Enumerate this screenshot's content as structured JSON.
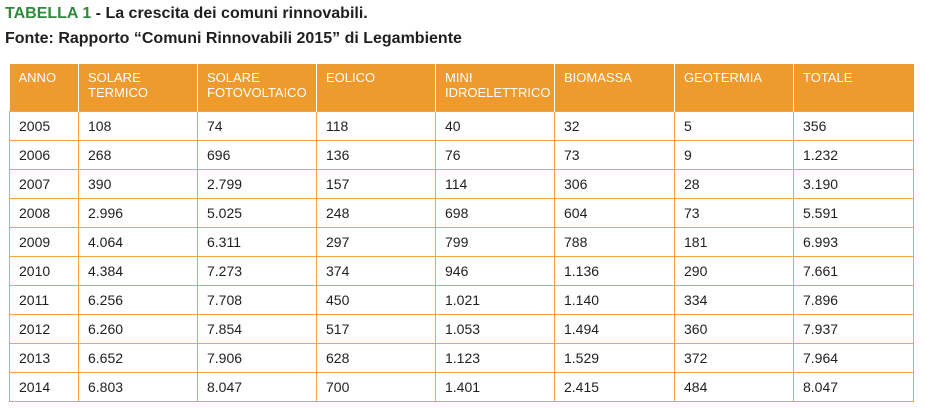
{
  "caption": {
    "tag": "TABELLA 1",
    "title": " - La crescita dei comuni rinnovabili.",
    "source": "Fonte: Rapporto “Comuni Rinnovabili 2015” di Legambiente"
  },
  "table": {
    "headers": [
      [
        "ANNO"
      ],
      [
        "SOLARE",
        "TERMICO"
      ],
      [
        "SOLARE",
        "FOTOVOLTAICO"
      ],
      [
        "EOLICO"
      ],
      [
        "MINI",
        "IDROELETTRICO"
      ],
      [
        "BIOMASSA"
      ],
      [
        "GEOTERMIA"
      ],
      [
        "TOTALE"
      ]
    ],
    "rows": [
      [
        "2005",
        "108",
        "74",
        "118",
        "40",
        "32",
        "5",
        "356"
      ],
      [
        "2006",
        "268",
        "696",
        "136",
        "76",
        "73",
        "9",
        "1.232"
      ],
      [
        "2007",
        "390",
        "2.799",
        "157",
        "114",
        "306",
        "28",
        "3.190"
      ],
      [
        "2008",
        "2.996",
        "5.025",
        "248",
        "698",
        "604",
        "73",
        "5.591"
      ],
      [
        "2009",
        "4.064",
        "6.311",
        "297",
        "799",
        "788",
        "181",
        "6.993"
      ],
      [
        "2010",
        "4.384",
        "7.273",
        "374",
        "946",
        "1.136",
        "290",
        "7.661"
      ],
      [
        "2011",
        "6.256",
        "7.708",
        "450",
        "1.021",
        "1.140",
        "334",
        "7.896"
      ],
      [
        "2012",
        "6.260",
        "7.854",
        "517",
        "1.053",
        "1.494",
        "360",
        "7.937"
      ],
      [
        "2013",
        "6.652",
        "7.906",
        "628",
        "1.123",
        "1.529",
        "372",
        "7.964"
      ],
      [
        "2014",
        "6.803",
        "8.047",
        "700",
        "1.401",
        "2.415",
        "484",
        "8.047"
      ]
    ]
  },
  "colors": {
    "header_bg": "#ef9a2d",
    "border": "#f2a440",
    "tag": "#2e8b3a"
  }
}
